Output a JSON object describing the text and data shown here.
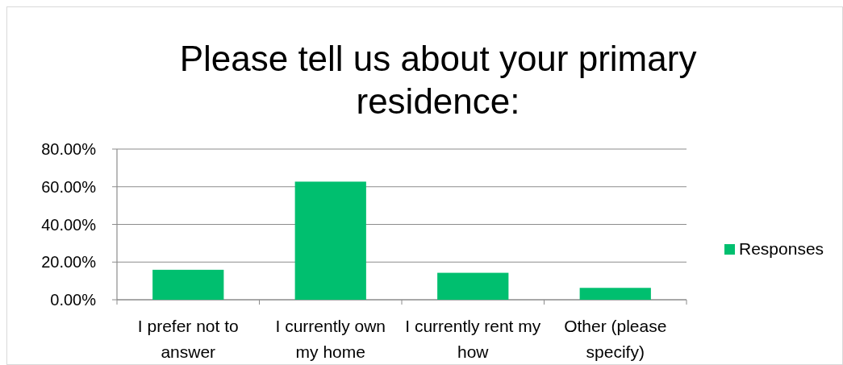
{
  "chart_data": {
    "type": "bar",
    "title": "Please tell us about your primary residence:",
    "categories": [
      "I prefer not to answer",
      "I currently own my home",
      "I currently rent my how",
      "Other (please specify)"
    ],
    "series": [
      {
        "name": "Responses",
        "color": "#00bf6f",
        "values": [
          15.9,
          62.7,
          14.3,
          6.3
        ]
      }
    ],
    "ylim": [
      0,
      80
    ],
    "yticks": [
      {
        "value": 0,
        "label": "0.00%"
      },
      {
        "value": 20,
        "label": "20.00%"
      },
      {
        "value": 40,
        "label": "40.00%"
      },
      {
        "value": 60,
        "label": "60.00%"
      },
      {
        "value": 80,
        "label": "80.00%"
      }
    ],
    "grid": "y",
    "legend": "right"
  }
}
